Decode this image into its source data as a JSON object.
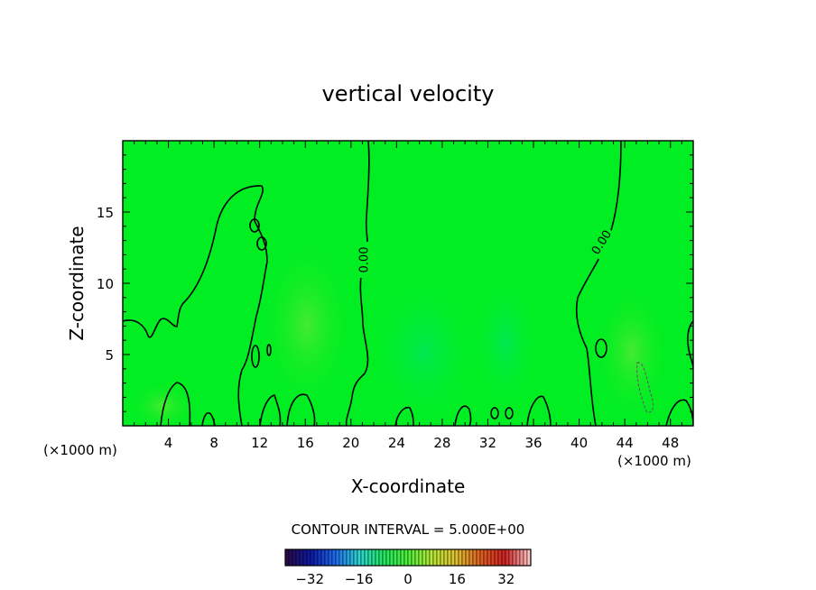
{
  "chart_data": {
    "type": "contour",
    "title": "vertical velocity",
    "xlabel": "X-coordinate",
    "ylabel": "Z-coordinate",
    "x_unit_label": "(×1000 m)",
    "x_unit_label_right": "(×1000 m)",
    "xlim": [
      0,
      50
    ],
    "ylim": [
      0,
      20
    ],
    "x_ticks": [
      4,
      8,
      12,
      16,
      20,
      24,
      28,
      32,
      36,
      40,
      44,
      48
    ],
    "y_ticks": [
      5,
      10,
      15
    ],
    "contour_labels": [
      "0.00",
      "0.00"
    ],
    "contour_interval_text": "CONTOUR INTERVAL = 5.000E+00",
    "colorbar": {
      "range": [
        -40,
        40
      ],
      "ticks": [
        -32,
        -16,
        0,
        16,
        32
      ],
      "colors": [
        "#2a0a4a",
        "#0a1aa8",
        "#1f6cf0",
        "#2bd6d0",
        "#20e860",
        "#4ef03a",
        "#b8e838",
        "#e0c030",
        "#e06020",
        "#d02020",
        "#ffc0c0"
      ]
    },
    "background_color": "#00ee22"
  }
}
